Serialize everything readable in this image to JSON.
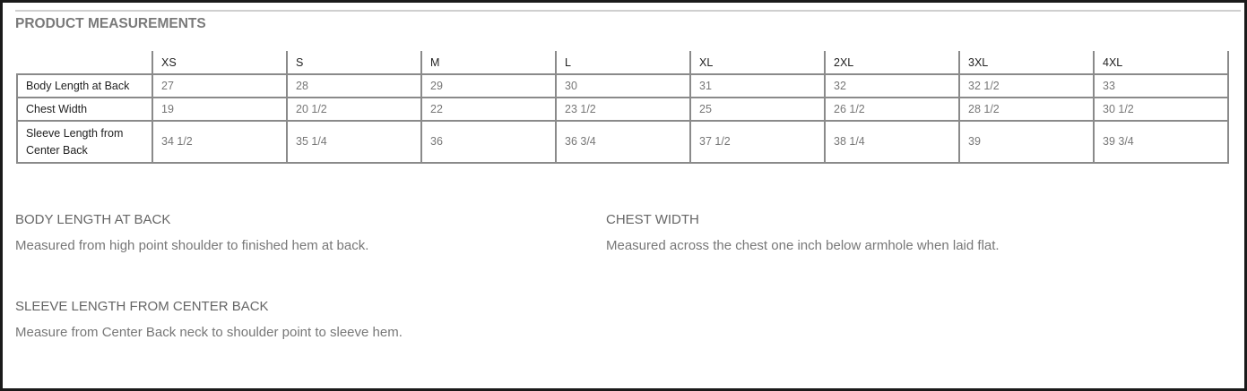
{
  "title": "PRODUCT MEASUREMENTS",
  "table": {
    "sizes": [
      "XS",
      "S",
      "M",
      "L",
      "XL",
      "2XL",
      "3XL",
      "4XL"
    ],
    "rows": [
      {
        "label": "Body Length at Back",
        "values": [
          "27",
          "28",
          "29",
          "30",
          "31",
          "32",
          "32 1/2",
          "33"
        ]
      },
      {
        "label": "Chest Width",
        "values": [
          "19",
          "20 1/2",
          "22",
          "23 1/2",
          "25",
          "26 1/2",
          "28 1/2",
          "30 1/2"
        ]
      },
      {
        "label": "Sleeve Length from Center Back",
        "values": [
          "34 1/2",
          "35 1/4",
          "36",
          "36 3/4",
          "37 1/2",
          "38 1/4",
          "39",
          "39 3/4"
        ]
      }
    ]
  },
  "definitions": [
    {
      "heading": "BODY LENGTH AT BACK",
      "text": "Measured from high point shoulder to finished hem at back."
    },
    {
      "heading": "CHEST WIDTH",
      "text": "Measured across the chest one inch below armhole when laid flat."
    },
    {
      "heading": "SLEEVE LENGTH FROM CENTER BACK",
      "text": "Measure from Center Back neck to shoulder point to sleeve hem."
    }
  ]
}
